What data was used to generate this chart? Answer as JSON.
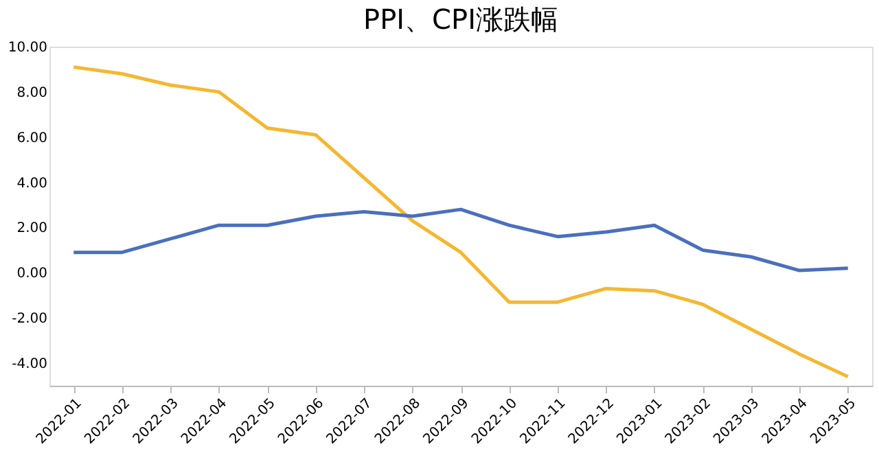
{
  "chart_data": {
    "type": "line",
    "title": "PPI、CPI涨跌幅",
    "categories": [
      "2022-01",
      "2022-02",
      "2022-03",
      "2022-04",
      "2022-05",
      "2022-06",
      "2022-07",
      "2022-08",
      "2022-09",
      "2022-10",
      "2022-11",
      "2022-12",
      "2023-01",
      "2023-02",
      "2023-03",
      "2023-04",
      "2023-05"
    ],
    "series": [
      {
        "color": "#f5b731",
        "values": [
          9.1,
          8.8,
          8.3,
          8.0,
          6.4,
          6.1,
          4.2,
          2.3,
          0.9,
          -1.3,
          -1.3,
          -0.7,
          -0.8,
          -1.4,
          -2.5,
          -3.6,
          -4.6
        ]
      },
      {
        "color": "#4a6fbf",
        "values": [
          0.9,
          0.9,
          1.5,
          2.1,
          2.1,
          2.5,
          2.7,
          2.5,
          2.8,
          2.1,
          1.6,
          1.8,
          2.1,
          1.0,
          0.7,
          0.1,
          0.2
        ]
      }
    ],
    "ylim": [
      -5,
      10
    ],
    "yticks": [
      {
        "value": -4,
        "label": "-4.00"
      },
      {
        "value": -2,
        "label": "-2.00"
      },
      {
        "value": 0,
        "label": "0.00"
      },
      {
        "value": 2,
        "label": "2.00"
      },
      {
        "value": 4,
        "label": "4.00"
      },
      {
        "value": 6,
        "label": "6.00"
      },
      {
        "value": 8,
        "label": "8.00"
      },
      {
        "value": 10,
        "label": "10.00"
      }
    ],
    "grid": false,
    "legend": false,
    "marker": "none",
    "line_style": "solid"
  }
}
